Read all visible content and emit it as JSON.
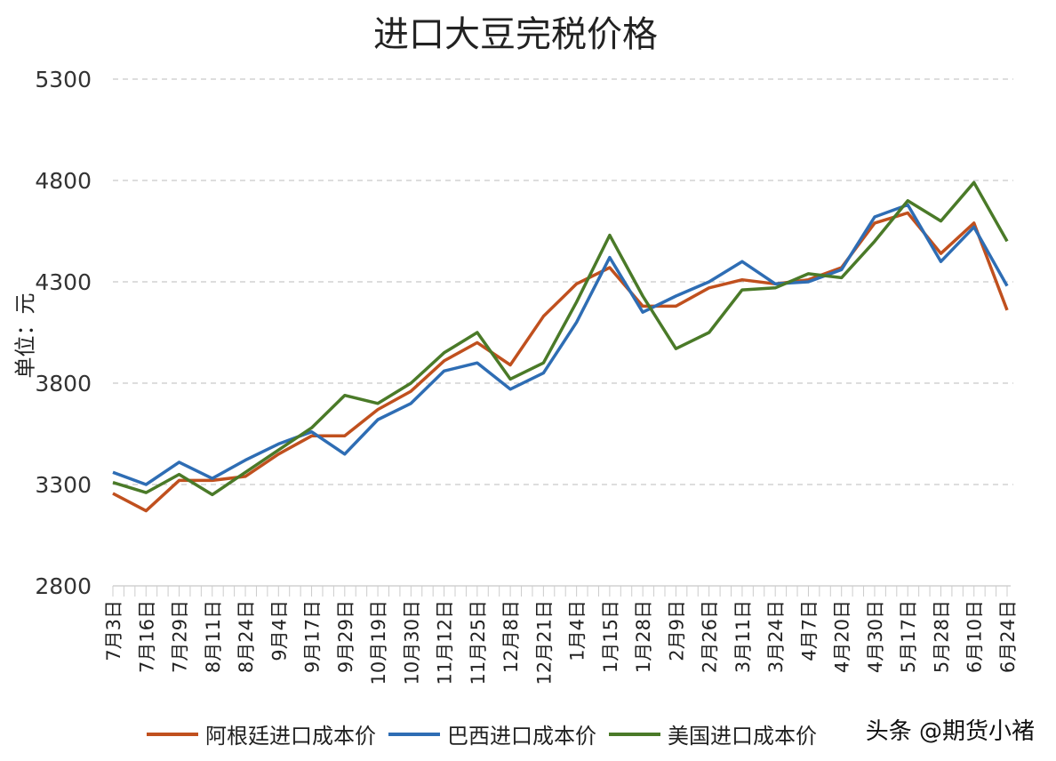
{
  "chart_data": {
    "type": "line",
    "title": "进口大豆完税价格",
    "ylabel": "单位：元",
    "xlabel": "",
    "ylim": [
      2800,
      5300
    ],
    "yticks": [
      2800,
      3300,
      3800,
      4300,
      4800,
      5300
    ],
    "grid": "horizontal dashed",
    "legend_position": "bottom",
    "categories": [
      "7月3日",
      "7月16日",
      "7月29日",
      "8月11日",
      "8月24日",
      "9月4日",
      "9月17日",
      "9月29日",
      "10月19日",
      "10月30日",
      "11月12日",
      "11月25日",
      "12月8日",
      "12月21日",
      "1月4日",
      "1月15日",
      "1月28日",
      "2月9日",
      "2月26日",
      "3月11日",
      "3月24日",
      "4月7日",
      "4月20日",
      "4月30日",
      "5月17日",
      "5月28日",
      "6月10日",
      "6月24日"
    ],
    "series": [
      {
        "name": "阿根廷进口成本价",
        "color": "#c0501e",
        "values": [
          3256,
          3170,
          3320,
          3320,
          3340,
          3450,
          3540,
          3540,
          3670,
          3760,
          3910,
          4000,
          3890,
          4130,
          4290,
          4370,
          4180,
          4180,
          4270,
          4310,
          4290,
          4310,
          4370,
          4590,
          4640,
          4440,
          4590,
          4160
        ]
      },
      {
        "name": "巴西进口成本价",
        "color": "#2e6db4",
        "values": [
          3360,
          3300,
          3410,
          3330,
          3420,
          3500,
          3560,
          3450,
          3620,
          3700,
          3860,
          3900,
          3770,
          3850,
          4100,
          4420,
          4150,
          4230,
          4300,
          4400,
          4290,
          4300,
          4360,
          4620,
          4680,
          4400,
          4570,
          4280
        ]
      },
      {
        "name": "美国进口成本价",
        "color": "#4a7a28",
        "values": [
          3310,
          3260,
          3350,
          3250,
          3360,
          3470,
          3580,
          3740,
          3700,
          3800,
          3950,
          4050,
          3820,
          3900,
          4200,
          4530,
          4230,
          3970,
          4050,
          4260,
          4270,
          4340,
          4320,
          4500,
          4700,
          4600,
          4790,
          4500
        ]
      }
    ]
  },
  "watermark": "头条 @期货小褚"
}
